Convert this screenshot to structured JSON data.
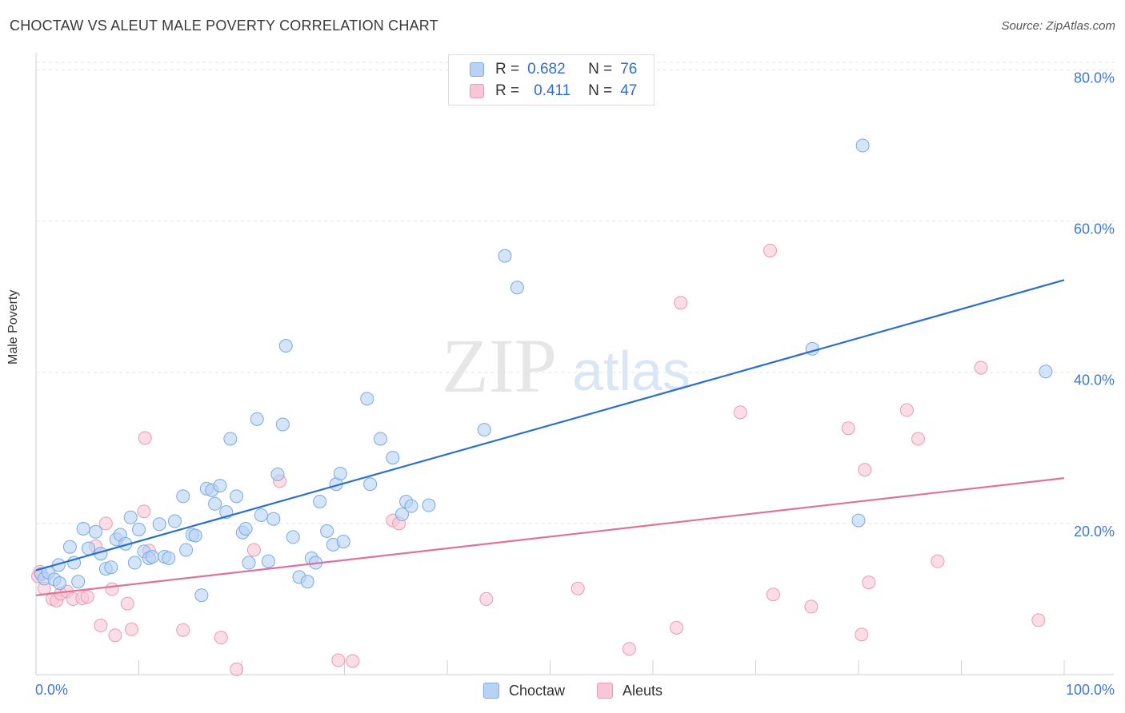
{
  "title": "CHOCTAW VS ALEUT MALE POVERTY CORRELATION CHART",
  "source": "Source: ZipAtlas.com",
  "watermark": {
    "zip": "ZIP",
    "atlas": "atlas"
  },
  "legend": {
    "rows": [
      {
        "r_label": "R =",
        "r_value": "0.682",
        "n_label": "N =",
        "n_value": "76"
      },
      {
        "r_label": "R =",
        "r_value": "0.411",
        "n_label": "N =",
        "n_value": "47"
      }
    ]
  },
  "bottom_legend": {
    "choctaw": "Choctaw",
    "aleuts": "Aleuts"
  },
  "colors": {
    "choctaw_fill": "#b8d2f5",
    "choctaw_stroke": "#7aaae0",
    "choctaw_line": "#2a6fd0",
    "aleuts_fill": "#f8c6d6",
    "aleuts_stroke": "#e99ab4",
    "aleuts_line": "#e0719b",
    "grid": "#e3e3e3",
    "tick_label": "#3d78d6"
  },
  "chart_data": {
    "type": "scatter",
    "title": "CHOCTAW VS ALEUT MALE POVERTY CORRELATION CHART",
    "xlabel": "",
    "ylabel": "Male Poverty",
    "xlim": [
      0,
      100
    ],
    "ylim": [
      0,
      81
    ],
    "x_tick_labels": [
      "0.0%",
      "100.0%"
    ],
    "y_ticks": [
      20,
      40,
      60,
      80
    ],
    "y_tick_labels": [
      "20.0%",
      "40.0%",
      "60.0%",
      "80.0%"
    ],
    "grid": true,
    "series": [
      {
        "name": "Choctaw",
        "R": 0.682,
        "N": 76,
        "trend": [
          [
            0,
            13.8
          ],
          [
            100,
            52.2
          ]
        ],
        "points": [
          [
            0.5,
            13.3
          ],
          [
            0.8,
            12.7
          ],
          [
            1.2,
            13.5
          ],
          [
            1.8,
            12.6
          ],
          [
            2.2,
            14.5
          ],
          [
            2.3,
            12.1
          ],
          [
            3.3,
            16.9
          ],
          [
            3.7,
            14.8
          ],
          [
            4.1,
            12.3
          ],
          [
            4.6,
            19.3
          ],
          [
            5.1,
            16.7
          ],
          [
            5.8,
            18.9
          ],
          [
            6.3,
            16.0
          ],
          [
            6.8,
            14.0
          ],
          [
            7.3,
            14.2
          ],
          [
            7.8,
            17.9
          ],
          [
            8.2,
            18.5
          ],
          [
            8.7,
            17.3
          ],
          [
            9.2,
            20.8
          ],
          [
            9.6,
            14.8
          ],
          [
            10.0,
            19.2
          ],
          [
            10.5,
            16.3
          ],
          [
            11.0,
            15.4
          ],
          [
            11.3,
            15.6
          ],
          [
            12.0,
            19.9
          ],
          [
            12.5,
            15.6
          ],
          [
            12.9,
            15.4
          ],
          [
            13.5,
            20.3
          ],
          [
            14.3,
            23.6
          ],
          [
            14.6,
            16.5
          ],
          [
            15.2,
            18.5
          ],
          [
            15.5,
            18.4
          ],
          [
            16.1,
            10.5
          ],
          [
            16.6,
            24.6
          ],
          [
            17.1,
            24.4
          ],
          [
            17.4,
            22.6
          ],
          [
            17.9,
            25.0
          ],
          [
            18.5,
            21.5
          ],
          [
            18.9,
            31.2
          ],
          [
            19.5,
            23.6
          ],
          [
            20.1,
            18.8
          ],
          [
            20.4,
            19.3
          ],
          [
            20.7,
            14.8
          ],
          [
            21.5,
            33.8
          ],
          [
            21.9,
            21.1
          ],
          [
            22.6,
            15.0
          ],
          [
            23.1,
            20.6
          ],
          [
            23.5,
            26.5
          ],
          [
            24.0,
            33.1
          ],
          [
            24.3,
            43.5
          ],
          [
            25.0,
            18.2
          ],
          [
            25.6,
            12.9
          ],
          [
            26.4,
            12.3
          ],
          [
            26.8,
            15.4
          ],
          [
            27.2,
            14.8
          ],
          [
            27.6,
            22.9
          ],
          [
            28.3,
            19.0
          ],
          [
            28.9,
            17.2
          ],
          [
            29.2,
            25.2
          ],
          [
            29.6,
            26.6
          ],
          [
            29.9,
            17.6
          ],
          [
            32.2,
            36.5
          ],
          [
            32.5,
            25.2
          ],
          [
            33.5,
            31.2
          ],
          [
            34.7,
            28.7
          ],
          [
            35.6,
            21.2
          ],
          [
            36.0,
            22.9
          ],
          [
            36.5,
            22.3
          ],
          [
            38.2,
            22.4
          ],
          [
            43.6,
            32.4
          ],
          [
            45.6,
            55.4
          ],
          [
            46.8,
            51.2
          ],
          [
            75.5,
            43.1
          ],
          [
            80.0,
            20.4
          ],
          [
            80.4,
            70.0
          ],
          [
            98.2,
            40.1
          ]
        ]
      },
      {
        "name": "Aleuts",
        "R": 0.411,
        "N": 47,
        "trend": [
          [
            0,
            10.5
          ],
          [
            100,
            26.0
          ]
        ],
        "points": [
          [
            0.4,
            13.6
          ],
          [
            0.8,
            11.4
          ],
          [
            1.6,
            10.0
          ],
          [
            2.0,
            9.8
          ],
          [
            2.4,
            10.7
          ],
          [
            3.0,
            11.0
          ],
          [
            3.6,
            10.0
          ],
          [
            4.5,
            10.1
          ],
          [
            5.0,
            10.3
          ],
          [
            5.8,
            17.0
          ],
          [
            6.3,
            6.5
          ],
          [
            6.8,
            20.0
          ],
          [
            7.4,
            11.3
          ],
          [
            7.7,
            5.2
          ],
          [
            8.9,
            9.4
          ],
          [
            9.3,
            6.0
          ],
          [
            10.5,
            21.6
          ],
          [
            10.6,
            31.3
          ],
          [
            11.0,
            16.4
          ],
          [
            14.3,
            5.9
          ],
          [
            18.0,
            4.9
          ],
          [
            19.5,
            0.7
          ],
          [
            21.2,
            16.5
          ],
          [
            23.7,
            25.6
          ],
          [
            29.4,
            1.9
          ],
          [
            30.8,
            1.8
          ],
          [
            34.7,
            20.4
          ],
          [
            35.3,
            20.0
          ],
          [
            43.8,
            10.0
          ],
          [
            52.7,
            11.4
          ],
          [
            57.7,
            3.4
          ],
          [
            62.3,
            6.2
          ],
          [
            62.7,
            49.2
          ],
          [
            68.5,
            34.7
          ],
          [
            71.4,
            56.1
          ],
          [
            71.7,
            10.6
          ],
          [
            75.4,
            9.0
          ],
          [
            79.0,
            32.6
          ],
          [
            80.3,
            5.3
          ],
          [
            80.6,
            27.1
          ],
          [
            81.0,
            12.2
          ],
          [
            84.7,
            35.0
          ],
          [
            85.8,
            31.2
          ],
          [
            87.7,
            15.0
          ],
          [
            91.9,
            40.6
          ],
          [
            97.5,
            7.2
          ],
          [
            0.2,
            13.0
          ]
        ]
      }
    ]
  }
}
